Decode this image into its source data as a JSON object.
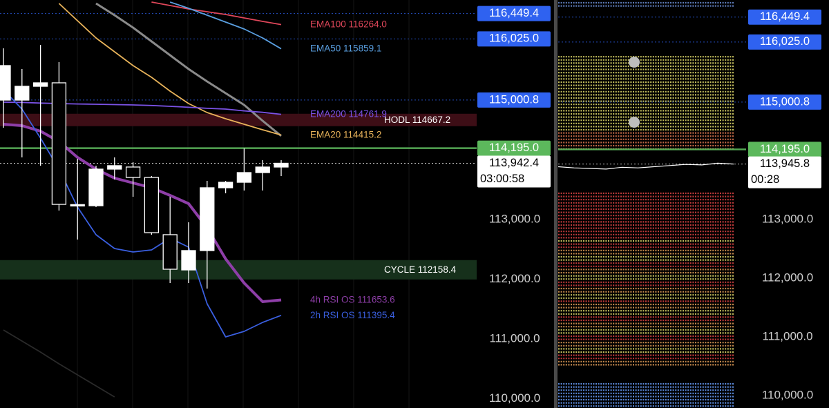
{
  "chart_data": [
    {
      "type": "candlestick",
      "categories": [
        null,
        null,
        null,
        null,
        null,
        null,
        null,
        null,
        null,
        null,
        null,
        null,
        null,
        null,
        null,
        null
      ],
      "open": [
        115000,
        115000,
        115231,
        115289,
        113243,
        113231,
        113844,
        113879,
        113705,
        112746,
        112156,
        112480,
        113532,
        113624,
        113786,
        113879
      ],
      "high": [
        115867,
        115520,
        115925,
        115636,
        114017,
        113902,
        114040,
        113959,
        113728,
        113381,
        112954,
        113647,
        113647,
        114191,
        113994,
        113994
      ],
      "low": [
        114537,
        114040,
        113902,
        113150,
        112665,
        113208,
        113670,
        113381,
        112746,
        111936,
        111936,
        111844,
        113439,
        113486,
        113486,
        113728
      ],
      "close": [
        115578,
        115231,
        115289,
        113254,
        113250,
        113844,
        113902,
        113705,
        112780,
        112168,
        112480,
        113532,
        113624,
        113786,
        113879,
        113942.4
      ],
      "up_color": "#ffffff",
      "down_color": "#000000",
      "series": [
        {
          "name": "EMA100",
          "color": "#e0475a",
          "values": [
            null,
            null,
            null,
            null,
            null,
            null,
            null,
            null,
            116641,
            116584,
            116526,
            116480,
            116433,
            116376,
            116318,
            116264
          ],
          "value_labels": [
            null,
            null,
            null,
            null,
            null,
            null,
            null,
            null,
            null,
            null,
            null,
            null,
            null,
            null,
            null,
            "116264.0"
          ]
        },
        {
          "name": "EMA50",
          "color": "#5a9fe0",
          "values": [
            null,
            null,
            null,
            null,
            null,
            null,
            null,
            null,
            null,
            116641,
            116537,
            116422,
            116306,
            116191,
            116040,
            115859.1
          ]
        },
        {
          "color": "#8a8a8a",
          "width": 3,
          "values": [
            null,
            null,
            null,
            null,
            null,
            116618,
            116422,
            116214,
            115982,
            115751,
            115520,
            115312,
            115115,
            114919,
            114653,
            114400
          ]
        },
        {
          "name": "EMA20",
          "color": "#e8b35a",
          "values": [
            null,
            null,
            null,
            116618,
            116329,
            116040,
            115809,
            115578,
            115381,
            115150,
            114942,
            114792,
            114688,
            114595,
            114503,
            114415.2
          ]
        },
        {
          "name": "EMA200",
          "color": "#7b52e6",
          "values": [
            114965,
            114960,
            114950,
            114942,
            114935,
            114930,
            114925,
            114919,
            114910,
            114896,
            114880,
            114862,
            114850,
            114820,
            114795,
            114761.9
          ]
        },
        {
          "name": "4h RSI OS",
          "color": "#8e3ea8",
          "width": 4,
          "values": [
            114595,
            114572,
            114480,
            114306,
            114040,
            113844,
            113694,
            113613,
            113532,
            113405,
            113266,
            112861,
            112341,
            111936,
            111624,
            111653.6
          ]
        },
        {
          "name": "2h RSI OS",
          "color": "#3a5fe0",
          "values": [
            115173,
            114850,
            114364,
            113844,
            113208,
            112746,
            112514,
            112457,
            112491,
            112688,
            112538,
            111590,
            111035,
            111127,
            111278,
            111395.4
          ]
        },
        {
          "color": "#2a2a2a",
          "values": [
            111150,
            110965,
            110780,
            110584,
            110399,
            110214,
            110029,
            null,
            null,
            null,
            null,
            null,
            null,
            null,
            null,
            null
          ]
        }
      ],
      "levels": [
        {
          "name": "HODL",
          "value": 114667.2,
          "color": "#3d0e16"
        },
        {
          "name": "CYCLE",
          "value": 112158.4,
          "color": "#16301b"
        }
      ],
      "price_lines": [
        {
          "value": 116449.4,
          "label": "116,449.4",
          "color": "#2f62f0"
        },
        {
          "value": 116025,
          "label": "116,025.0",
          "color": "#2f62f0"
        },
        {
          "value": 115000.8,
          "label": "115,000.8",
          "color": "#2f62f0"
        },
        {
          "value": 114195,
          "label": "114,195.0",
          "color": "#5cb85c"
        },
        {
          "value": 113942.4,
          "label": "113,942.4",
          "countdown": "03:00:58",
          "color": "#ffffff"
        }
      ],
      "ylim": [
        109844,
        116676
      ],
      "yticks": [
        {
          "value": 113000,
          "label": "113,000.0"
        },
        {
          "value": 112000,
          "label": "112,000.0"
        },
        {
          "value": 111000,
          "label": "111,000.0"
        },
        {
          "value": 110000,
          "label": "110,000.0"
        }
      ]
    },
    {
      "type": "line",
      "categories": [
        null,
        null,
        null,
        null,
        null,
        null,
        null,
        null,
        null,
        null,
        null,
        null
      ],
      "series": [
        {
          "color": "#ffffff",
          "values": [
            113900,
            113880,
            113870,
            113860,
            113890,
            113880,
            113900,
            113920,
            113940,
            113930,
            113960,
            113945.8
          ]
        }
      ],
      "price_lines": [
        {
          "value": 116449.4,
          "label": "116,449.4",
          "color": "#2f62f0"
        },
        {
          "value": 116025,
          "label": "116,025.0",
          "color": "#2f62f0"
        },
        {
          "value": 115000.8,
          "label": "115,000.8",
          "color": "#2f62f0"
        },
        {
          "value": 114195,
          "label": "114,195.0",
          "color": "#5cb85c"
        },
        {
          "value": 113945.8,
          "label": "113,945.8",
          "countdown": "00:28",
          "color": "#ffffff"
        }
      ],
      "ylim": [
        109788,
        116741
      ],
      "yticks": [
        {
          "value": 113000,
          "label": "113,000.0"
        },
        {
          "value": 112000,
          "label": "112,000.0"
        },
        {
          "value": 111000,
          "label": "111,000.0"
        },
        {
          "value": 110000,
          "label": "110,000.0"
        }
      ]
    }
  ]
}
